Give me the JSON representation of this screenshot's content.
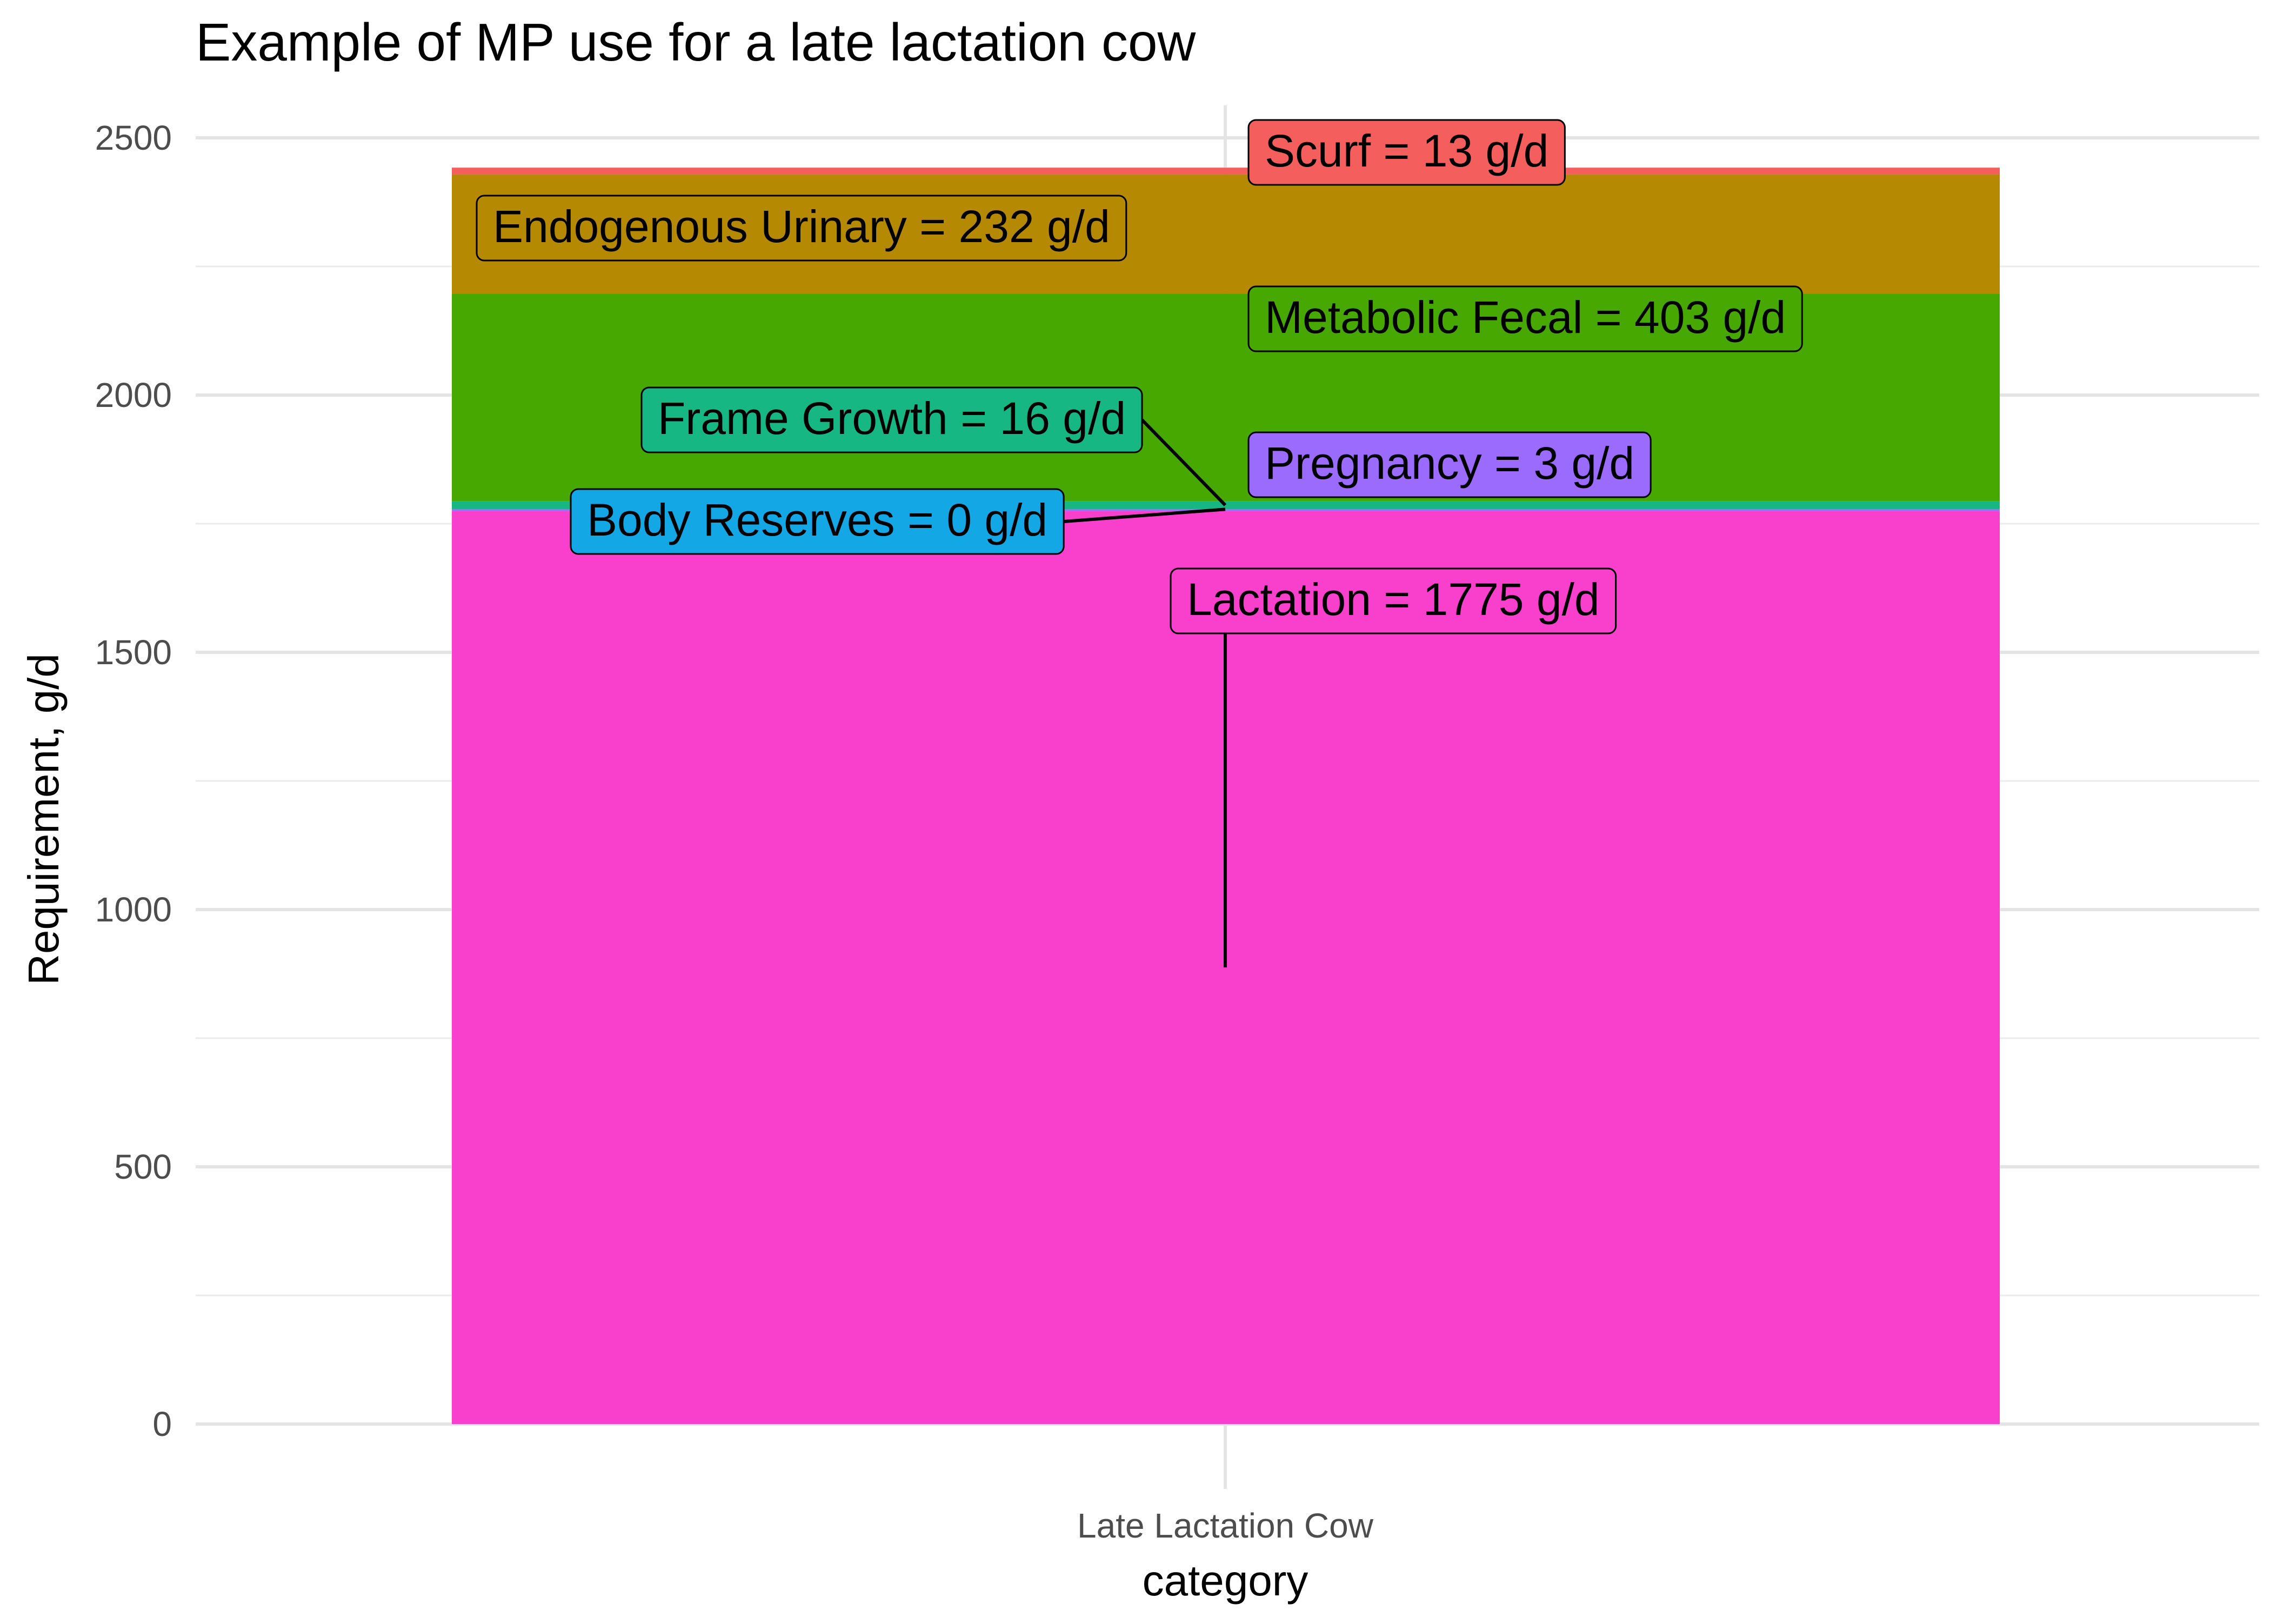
{
  "chart_data": {
    "type": "bar",
    "stacked": true,
    "title": "Example of MP use for a late lactation cow",
    "xlabel": "category",
    "ylabel": "Requirement, g/d",
    "categories": [
      "Late Lactation Cow"
    ],
    "ylim": [
      0,
      2560
    ],
    "yticks": [
      0,
      500,
      1000,
      1500,
      2000,
      2500
    ],
    "grid": true,
    "legend": "none",
    "series": [
      {
        "name": "Lactation",
        "values": [
          1775
        ],
        "color": "#F840CD",
        "label": "Lactation  =  1775 g/d"
      },
      {
        "name": "Pregnancy",
        "values": [
          3
        ],
        "color": "#9B6BFE",
        "label": "Pregnancy  =  3 g/d"
      },
      {
        "name": "Body Reserves",
        "values": [
          0
        ],
        "color": "#14A7E6",
        "label": "Body Reserves  =  0 g/d"
      },
      {
        "name": "Frame Growth",
        "values": [
          16
        ],
        "color": "#17B783",
        "label": "Frame Growth  =  16 g/d"
      },
      {
        "name": "Metabolic Fecal",
        "values": [
          403
        ],
        "color": "#48A802",
        "label": "Metabolic Fecal  =  403 g/d"
      },
      {
        "name": "Endogenous Urinary",
        "values": [
          232
        ],
        "color": "#B68903",
        "label": "Endogenous Urinary  =  232 g/d"
      },
      {
        "name": "Scurf",
        "values": [
          13
        ],
        "color": "#F45E5C",
        "label": "Scurf  =  13 g/d"
      }
    ]
  }
}
